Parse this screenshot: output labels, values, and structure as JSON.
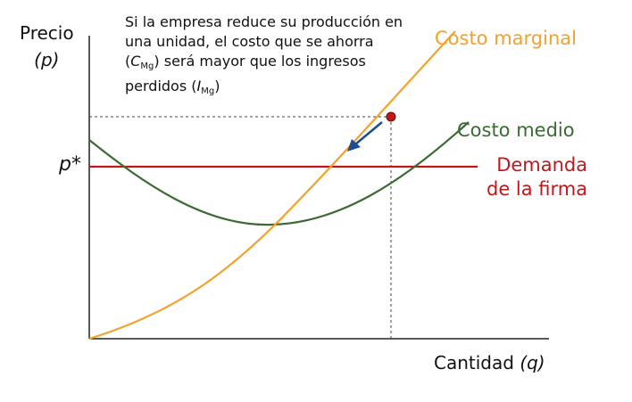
{
  "axes": {
    "y_label": "Precio",
    "y_var": "(p)",
    "x_label": "Cantidad",
    "x_var": "(q)",
    "p_star": "p*"
  },
  "note": {
    "line1": "Si la empresa reduce su producción en",
    "line2": "una unidad, el costo que se ahorra",
    "line3_open": "(",
    "line3_c": "C",
    "line3_sub": "Mg",
    "line3_rest": ") será mayor que los ingresos",
    "line4_start": "perdidos (",
    "line4_i": "I",
    "line4_sub": "Mg",
    "line4_end": ")"
  },
  "curves": {
    "marginal_cost": "Costo marginal",
    "average_cost": "Costo medio",
    "demand_line1": "Demanda",
    "demand_line2": "de la firma"
  },
  "colors": {
    "marginal_cost": "#f3a12b",
    "average_cost": "#3b6a33",
    "demand": "#c0171d",
    "arrow": "#1f4e8c",
    "point": "#c0171d"
  }
}
